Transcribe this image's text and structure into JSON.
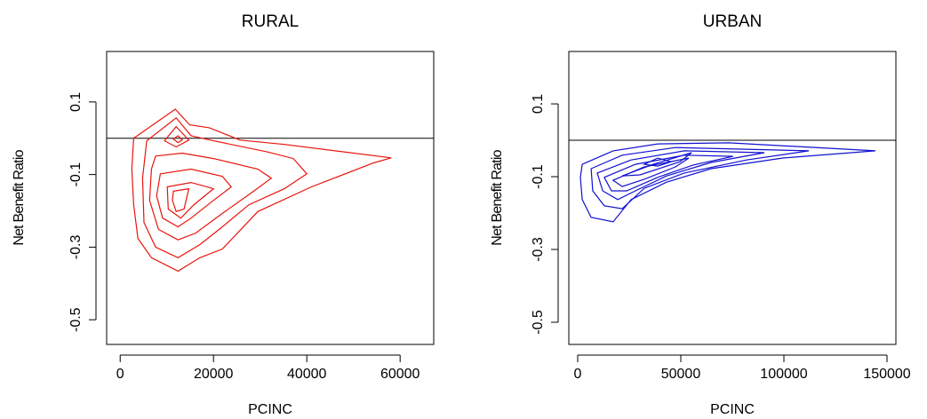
{
  "chart_data": [
    {
      "type": "contour",
      "title": "RURAL",
      "xlabel": "PCINC",
      "ylabel": "Net Benefit Ratio",
      "color": "#e8140c",
      "xlim": [
        -2900,
        67200
      ],
      "ylim": [
        -0.568,
        0.239
      ],
      "xticks": [
        0,
        20000,
        40000,
        60000
      ],
      "yticks": [
        -0.5,
        -0.3,
        -0.1,
        0.1
      ],
      "hline": 0,
      "contours": [
        {
          "x": [
            2900,
            11800,
            14900,
            19100,
            25700,
            35200,
            58100,
            54300,
            41000,
            29500,
            21900,
            17100,
            12400,
            6700,
            3800,
            2900,
            2500
          ],
          "y": [
            0.0,
            0.08,
            0.037,
            0.029,
            -0.005,
            -0.017,
            -0.054,
            -0.068,
            -0.134,
            -0.202,
            -0.305,
            -0.329,
            -0.366,
            -0.329,
            -0.276,
            -0.183,
            -0.085
          ]
        },
        {
          "x": [
            5700,
            12000,
            15200,
            20000,
            31400,
            37100,
            40000,
            35200,
            27600,
            21900,
            17100,
            12400,
            7600,
            5100,
            4800
          ],
          "y": [
            -0.007,
            0.056,
            0.007,
            -0.007,
            -0.037,
            -0.056,
            -0.098,
            -0.139,
            -0.183,
            -0.244,
            -0.293,
            -0.329,
            -0.3,
            -0.232,
            -0.11
          ]
        },
        {
          "x": [
            9500,
            12000,
            14700,
            12000
          ],
          "y": [
            -0.007,
            0.032,
            -0.005,
            -0.024
          ]
        },
        {
          "x": [
            11400,
            12400,
            13300,
            12400
          ],
          "y": [
            -0.002,
            0.007,
            -0.005,
            -0.012
          ]
        },
        {
          "x": [
            7600,
            13300,
            20000,
            29500,
            32400,
            28600,
            21900,
            16200,
            12400,
            8200,
            6300,
            6700
          ],
          "y": [
            -0.049,
            -0.041,
            -0.056,
            -0.085,
            -0.11,
            -0.146,
            -0.207,
            -0.261,
            -0.28,
            -0.251,
            -0.171,
            -0.085
          ]
        },
        {
          "x": [
            8600,
            15200,
            21900,
            23800,
            20000,
            15200,
            12400,
            9100,
            7800
          ],
          "y": [
            -0.098,
            -0.085,
            -0.105,
            -0.134,
            -0.171,
            -0.22,
            -0.244,
            -0.22,
            -0.159
          ]
        },
        {
          "x": [
            10100,
            15200,
            20000,
            15800,
            13000,
            10300
          ],
          "y": [
            -0.134,
            -0.122,
            -0.139,
            -0.183,
            -0.22,
            -0.195
          ]
        },
        {
          "x": [
            11400,
            14700,
            13700,
            12000,
            11200
          ],
          "y": [
            -0.146,
            -0.139,
            -0.195,
            -0.202,
            -0.171
          ]
        }
      ]
    },
    {
      "type": "contour",
      "title": "URBAN",
      "xlabel": "PCINC",
      "ylabel": "Net Benefit Ratio",
      "color": "#1010d0",
      "xlim": [
        -4300,
        154300
      ],
      "ylim": [
        -0.561,
        0.244
      ],
      "xticks": [
        0,
        50000,
        100000,
        150000
      ],
      "yticks": [
        -0.5,
        -0.3,
        -0.1,
        0.1
      ],
      "hline": 0,
      "contours": [
        {
          "x": [
            2200,
            17200,
            38800,
            73300,
            144400,
            99100,
            64700,
            43100,
            25900,
            17200,
            6500,
            2200,
            1300
          ],
          "y": [
            -0.066,
            -0.029,
            -0.01,
            -0.007,
            -0.029,
            -0.049,
            -0.078,
            -0.115,
            -0.163,
            -0.224,
            -0.212,
            -0.163,
            -0.102
          ]
        },
        {
          "x": [
            6500,
            21600,
            47400,
            112100,
            81900,
            51700,
            32300,
            21600,
            12900,
            7300
          ],
          "y": [
            -0.078,
            -0.041,
            -0.02,
            -0.029,
            -0.054,
            -0.09,
            -0.132,
            -0.188,
            -0.18,
            -0.139
          ]
        },
        {
          "x": [
            9500,
            25900,
            51700,
            90500,
            64700,
            43100,
            28000,
            19400,
            12100
          ],
          "y": [
            -0.09,
            -0.054,
            -0.029,
            -0.034,
            -0.061,
            -0.098,
            -0.139,
            -0.163,
            -0.139
          ]
        },
        {
          "x": [
            12900,
            28000,
            51700,
            75400,
            56000,
            38800,
            23700,
            16400
          ],
          "y": [
            -0.102,
            -0.066,
            -0.041,
            -0.044,
            -0.068,
            -0.102,
            -0.139,
            -0.139
          ]
        },
        {
          "x": [
            17200,
            32300,
            53900,
            47400,
            32300,
            21600
          ],
          "y": [
            -0.11,
            -0.073,
            -0.049,
            -0.073,
            -0.107,
            -0.127
          ]
        },
        {
          "x": [
            21600,
            36600,
            55200,
            49600,
            30200
          ],
          "y": [
            -0.098,
            -0.066,
            -0.034,
            -0.059,
            -0.095
          ]
        },
        {
          "x": [
            32300,
            38800,
            45300,
            38800
          ],
          "y": [
            -0.066,
            -0.049,
            -0.059,
            -0.071
          ]
        }
      ]
    }
  ]
}
